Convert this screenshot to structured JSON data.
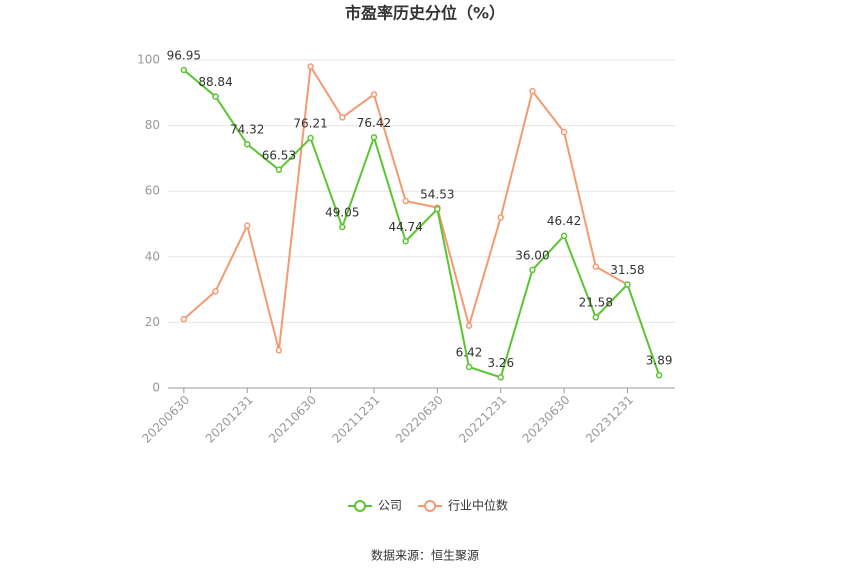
{
  "chart_data": {
    "type": "line",
    "title": "市盈率历史分位（%）",
    "categories": [
      "20200630",
      null,
      "20201231",
      null,
      "20210630",
      null,
      "20211231",
      null,
      "20220630",
      null,
      "20221231",
      null,
      "20230630",
      null,
      "20231231",
      null
    ],
    "series": [
      {
        "name": "公司",
        "color": "#5ac531",
        "values": [
          96.95,
          88.84,
          74.32,
          66.53,
          76.21,
          49.05,
          76.42,
          44.74,
          54.53,
          6.42,
          3.26,
          36.0,
          46.42,
          21.58,
          31.58,
          3.89
        ],
        "value_labels": [
          "96.95",
          "88.84",
          "74.32",
          "66.53",
          "76.21",
          "49.05",
          "76.42",
          "44.74",
          "54.53",
          "6.42",
          "3.26",
          "36.00",
          "46.42",
          "21.58",
          "31.58",
          "3.89"
        ]
      },
      {
        "name": "行业中位数",
        "color": "#f49a72",
        "values": [
          21,
          29.5,
          49.5,
          11.5,
          98,
          82.5,
          89.5,
          57,
          55,
          19,
          52,
          90.5,
          78,
          37,
          31.5,
          null
        ]
      }
    ],
    "ylim": [
      0,
      100
    ],
    "yticks": [
      0,
      20,
      40,
      60,
      80,
      100
    ],
    "grid": true,
    "source": "数据来源：恒生聚源"
  }
}
